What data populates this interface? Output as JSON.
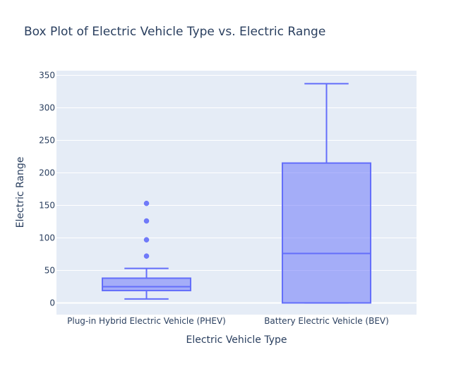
{
  "chart_data": {
    "type": "box",
    "title": "Box Plot of Electric Vehicle Type vs. Electric Range",
    "xlabel": "Electric Vehicle Type",
    "ylabel": "Electric Range",
    "ylim": [
      -18,
      357
    ],
    "yticks": [
      0,
      50,
      100,
      150,
      200,
      250,
      300,
      350
    ],
    "grid": true,
    "categories": [
      "Plug-in Hybrid Electric Vehicle (PHEV)",
      "Battery Electric Vehicle (BEV)"
    ],
    "boxes": [
      {
        "category": "Plug-in Hybrid Electric Vehicle (PHEV)",
        "min": 6,
        "q1": 19,
        "median": 25,
        "q3": 38,
        "max": 53,
        "outliers": [
          72,
          97,
          126,
          153
        ]
      },
      {
        "category": "Battery Electric Vehicle (BEV)",
        "min": 0,
        "q1": 0,
        "median": 76,
        "q3": 215,
        "max": 337,
        "outliers": []
      }
    ],
    "colors": {
      "line": "#636efa",
      "fill": "rgba(99,110,250,0.5)",
      "plot_bg": "#e5ecf6",
      "grid": "#ffffff",
      "text": "#2a3f5f"
    }
  }
}
